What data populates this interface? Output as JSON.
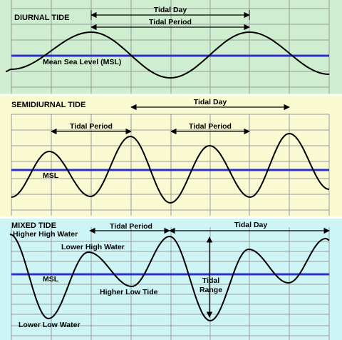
{
  "panels": [
    {
      "id": "diurnal",
      "title": "DIURNAL TIDE",
      "msl_label": "Mean Sea Level (MSL)",
      "background": "#cfeecf",
      "labels": {
        "tidal_day": "Tidal Day",
        "tidal_period": "Tidal Period"
      }
    },
    {
      "id": "semidiurnal",
      "title": "SEMIDIURNAL TIDE",
      "msl_label": "MSL",
      "background": "#fafad2",
      "labels": {
        "tidal_day": "Tidal Day",
        "tidal_period_1": "Tidal Period",
        "tidal_period_2": "Tidal Period"
      }
    },
    {
      "id": "mixed",
      "title": "MIXED TIDE",
      "msl_label": "MSL",
      "background": "#cdf5f5",
      "labels": {
        "tidal_day": "Tidal Day",
        "tidal_period": "Tidal Period",
        "higher_high_water": "Higher High Water",
        "lower_high_water": "Lower High Water",
        "higher_low_tide": "Higher Low Tide",
        "lower_low_water": "Lower Low Water",
        "tidal": "Tidal",
        "range": "Range"
      }
    }
  ],
  "colors": {
    "grid": "#9a9a9a",
    "msl_line": "#3030c8",
    "curve": "#000000",
    "text": "#000000",
    "separator": "#ffffff"
  }
}
